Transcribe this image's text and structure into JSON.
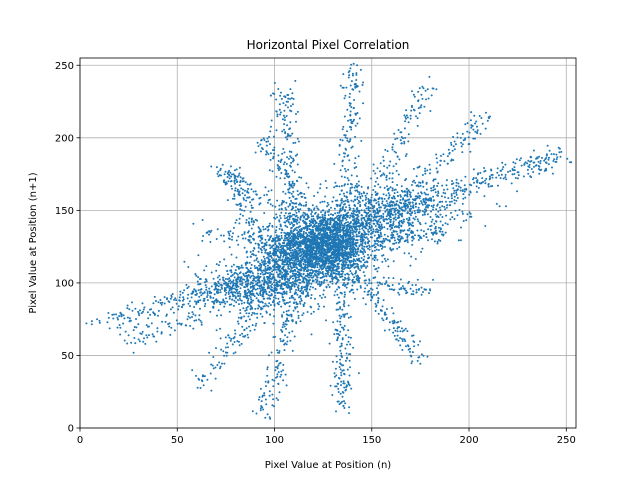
{
  "chart_data": {
    "type": "scatter",
    "title": "Horizontal Pixel Correlation",
    "xlabel": "Pixel Value at Position (n)",
    "ylabel": "Pixel Value at Position (n+1)",
    "xlim": [
      0,
      255
    ],
    "ylim": [
      0,
      255
    ],
    "xticks": [
      0,
      50,
      100,
      150,
      200,
      250
    ],
    "yticks": [
      0,
      50,
      100,
      150,
      200,
      250
    ],
    "grid": true,
    "marker_color": "#1f77b4",
    "clusters": [
      {
        "center": [
          125,
          125
        ],
        "spread": [
          12,
          12
        ],
        "count": 2200
      },
      {
        "center": [
          105,
          108
        ],
        "spread": [
          16,
          14
        ],
        "count": 600
      },
      {
        "center": [
          145,
          140
        ],
        "spread": [
          16,
          14
        ],
        "count": 500
      },
      {
        "center": [
          90,
          95
        ],
        "spread": [
          14,
          10
        ],
        "count": 350
      },
      {
        "center": [
          170,
          150
        ],
        "spread": [
          15,
          8
        ],
        "count": 300
      }
    ],
    "streaks": [
      {
        "from": [
          8,
          70
        ],
        "to": [
          110,
          115
        ],
        "count": 260,
        "jitter": 4
      },
      {
        "from": [
          140,
          140
        ],
        "to": [
          248,
          188
        ],
        "count": 320,
        "jitter": 4
      },
      {
        "from": [
          100,
          110
        ],
        "to": [
          75,
          180
        ],
        "count": 140,
        "jitter": 3
      },
      {
        "from": [
          110,
          120
        ],
        "to": [
          105,
          235
        ],
        "count": 160,
        "jitter": 3
      },
      {
        "from": [
          135,
          120
        ],
        "to": [
          140,
          248
        ],
        "count": 180,
        "jitter": 3
      },
      {
        "from": [
          140,
          130
        ],
        "to": [
          180,
          240
        ],
        "count": 150,
        "jitter": 3
      },
      {
        "from": [
          150,
          140
        ],
        "to": [
          210,
          215
        ],
        "count": 140,
        "jitter": 3
      },
      {
        "from": [
          150,
          130
        ],
        "to": [
          190,
          135
        ],
        "count": 90,
        "jitter": 3
      },
      {
        "from": [
          140,
          100
        ],
        "to": [
          180,
          95
        ],
        "count": 70,
        "jitter": 3
      },
      {
        "from": [
          145,
          105
        ],
        "to": [
          175,
          45
        ],
        "count": 110,
        "jitter": 3
      },
      {
        "from": [
          135,
          110
        ],
        "to": [
          135,
          15
        ],
        "count": 160,
        "jitter": 3
      },
      {
        "from": [
          115,
          110
        ],
        "to": [
          95,
          8
        ],
        "count": 130,
        "jitter": 3
      },
      {
        "from": [
          110,
          110
        ],
        "to": [
          60,
          30
        ],
        "count": 120,
        "jitter": 3
      },
      {
        "from": [
          110,
          105
        ],
        "to": [
          60,
          90
        ],
        "count": 90,
        "jitter": 4
      },
      {
        "from": [
          115,
          130
        ],
        "to": [
          60,
          135
        ],
        "count": 70,
        "jitter": 3
      },
      {
        "from": [
          115,
          140
        ],
        "to": [
          70,
          180
        ],
        "count": 70,
        "jitter": 3
      },
      {
        "from": [
          120,
          140
        ],
        "to": [
          95,
          200
        ],
        "count": 80,
        "jitter": 3
      },
      {
        "from": [
          100,
          100
        ],
        "to": [
          25,
          60
        ],
        "count": 110,
        "jitter": 4
      }
    ]
  }
}
